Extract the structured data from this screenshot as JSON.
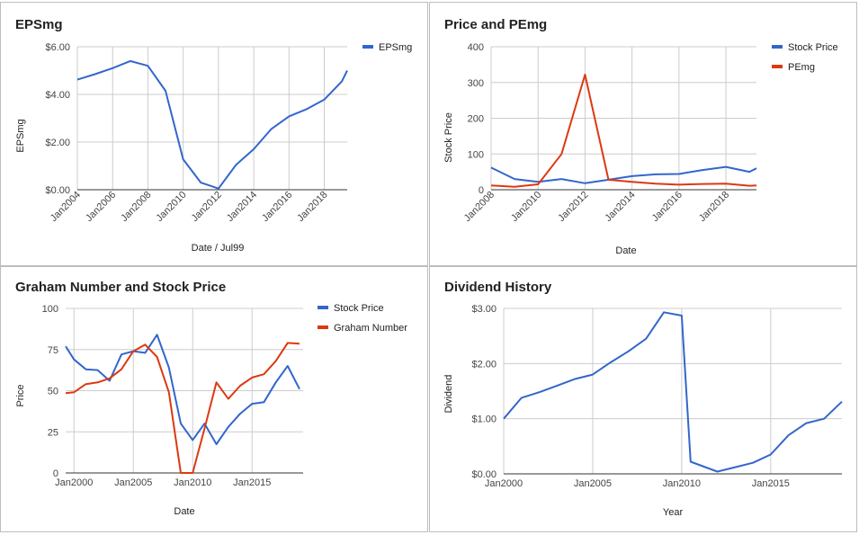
{
  "colors": {
    "blue": "#3366cc",
    "red": "#dc3912",
    "grid": "#cccccc",
    "baseline": "#333333"
  },
  "chart_data": [
    {
      "type": "line",
      "title": "EPSmg",
      "xlabel": "Date / Jul99",
      "ylabel": "EPSmg",
      "x_ticks": [
        "Jan2004",
        "Jan2006",
        "Jan2008",
        "Jan2010",
        "Jan2012",
        "Jan2014",
        "Jan2016",
        "Jan2018"
      ],
      "x_range": [
        2004,
        2019.3
      ],
      "y_ticks": [
        "$0.00",
        "$2.00",
        "$4.00",
        "$6.00"
      ],
      "y_tick_values": [
        0,
        2,
        4,
        6
      ],
      "ylim": [
        0,
        6
      ],
      "legend_position": "right",
      "series": [
        {
          "name": "EPSmg",
          "color": "#3366cc",
          "points": [
            [
              2004.0,
              4.62
            ],
            [
              2005.0,
              4.85
            ],
            [
              2006.0,
              5.1
            ],
            [
              2007.0,
              5.4
            ],
            [
              2008.0,
              5.2
            ],
            [
              2009.0,
              4.15
            ],
            [
              2010.0,
              1.28
            ],
            [
              2011.0,
              0.3
            ],
            [
              2012.0,
              0.05
            ],
            [
              2013.0,
              1.05
            ],
            [
              2014.0,
              1.7
            ],
            [
              2015.0,
              2.55
            ],
            [
              2016.0,
              3.08
            ],
            [
              2017.0,
              3.38
            ],
            [
              2018.0,
              3.78
            ],
            [
              2019.0,
              4.55
            ],
            [
              2019.3,
              5.0
            ]
          ]
        }
      ]
    },
    {
      "type": "line",
      "title": "Price and PEmg",
      "xlabel": "Date",
      "ylabel": "Stock Price",
      "x_ticks": [
        "Jan2008",
        "Jan2010",
        "Jan2012",
        "Jan2014",
        "Jan2016",
        "Jan2018"
      ],
      "x_range": [
        2008,
        2019.3
      ],
      "y_ticks": [
        "0",
        "100",
        "200",
        "300",
        "400"
      ],
      "y_tick_values": [
        0,
        100,
        200,
        300,
        400
      ],
      "ylim": [
        0,
        400
      ],
      "legend_position": "right",
      "series": [
        {
          "name": "Stock Price",
          "color": "#3366cc",
          "points": [
            [
              2008.0,
              62
            ],
            [
              2009.0,
              30
            ],
            [
              2010.0,
              22
            ],
            [
              2011.0,
              30
            ],
            [
              2012.0,
              18
            ],
            [
              2013.0,
              28
            ],
            [
              2014.0,
              38
            ],
            [
              2015.0,
              43
            ],
            [
              2016.0,
              44
            ],
            [
              2017.0,
              55
            ],
            [
              2018.0,
              64
            ],
            [
              2019.0,
              50
            ],
            [
              2019.3,
              60
            ]
          ]
        },
        {
          "name": "PEmg",
          "color": "#dc3912",
          "points": [
            [
              2008.0,
              12
            ],
            [
              2009.0,
              8
            ],
            [
              2010.0,
              15
            ],
            [
              2011.0,
              100
            ],
            [
              2012.0,
              322
            ],
            [
              2013.0,
              28
            ],
            [
              2014.0,
              22
            ],
            [
              2015.0,
              17
            ],
            [
              2016.0,
              14
            ],
            [
              2017.0,
              16
            ],
            [
              2018.0,
              17
            ],
            [
              2019.0,
              11
            ],
            [
              2019.3,
              12
            ]
          ]
        }
      ]
    },
    {
      "type": "line",
      "title": "Graham Number and Stock Price",
      "xlabel": "Date",
      "ylabel": "Price",
      "x_ticks": [
        "Jan2000",
        "Jan2005",
        "Jan2010",
        "Jan2015"
      ],
      "x_tick_values": [
        2000,
        2005,
        2010,
        2015
      ],
      "x_range": [
        1999.3,
        2019.3
      ],
      "y_ticks": [
        "0",
        "25",
        "50",
        "75",
        "100"
      ],
      "y_tick_values": [
        0,
        25,
        50,
        75,
        100
      ],
      "ylim": [
        0,
        100
      ],
      "legend_position": "right",
      "series": [
        {
          "name": "Stock Price",
          "color": "#3366cc",
          "points": [
            [
              1999.3,
              77
            ],
            [
              2000.0,
              69
            ],
            [
              2001.0,
              63
            ],
            [
              2002.0,
              62.5
            ],
            [
              2003.0,
              56
            ],
            [
              2004.0,
              72
            ],
            [
              2005.0,
              74
            ],
            [
              2006.0,
              73
            ],
            [
              2007.0,
              84
            ],
            [
              2008.0,
              64
            ],
            [
              2009.0,
              30
            ],
            [
              2010.0,
              20
            ],
            [
              2011.0,
              30
            ],
            [
              2012.0,
              17.5
            ],
            [
              2013.0,
              28
            ],
            [
              2014.0,
              36
            ],
            [
              2015.0,
              42
            ],
            [
              2016.0,
              43
            ],
            [
              2017.0,
              55
            ],
            [
              2018.0,
              65
            ],
            [
              2019.0,
              51
            ]
          ]
        },
        {
          "name": "Graham Number",
          "color": "#dc3912",
          "points": [
            [
              1999.3,
              48.5
            ],
            [
              2000.0,
              49
            ],
            [
              2001.0,
              54
            ],
            [
              2002.0,
              55
            ],
            [
              2003.0,
              57.5
            ],
            [
              2004.0,
              63
            ],
            [
              2005.0,
              74
            ],
            [
              2006.0,
              78
            ],
            [
              2007.0,
              70.5
            ],
            [
              2008.0,
              49
            ],
            [
              2009.0,
              0
            ],
            [
              2010.0,
              0
            ],
            [
              2011.0,
              27
            ],
            [
              2012.0,
              55
            ],
            [
              2013.0,
              45
            ],
            [
              2014.0,
              53
            ],
            [
              2015.0,
              58
            ],
            [
              2016.0,
              60
            ],
            [
              2017.0,
              68
            ],
            [
              2018.0,
              79
            ],
            [
              2019.0,
              78.5
            ]
          ]
        }
      ]
    },
    {
      "type": "line",
      "title": "Dividend History",
      "xlabel": "Year",
      "ylabel": "Dividend",
      "x_ticks": [
        "Jan2000",
        "Jan2005",
        "Jan2010",
        "Jan2015"
      ],
      "x_tick_values": [
        2000,
        2005,
        2010,
        2015
      ],
      "x_range": [
        2000,
        2019
      ],
      "y_ticks": [
        "$0.00",
        "$1.00",
        "$2.00",
        "$3.00"
      ],
      "y_tick_values": [
        0,
        1,
        2,
        3
      ],
      "ylim": [
        0,
        3
      ],
      "legend_position": "none",
      "series": [
        {
          "name": "",
          "color": "#3366cc",
          "points": [
            [
              2000.0,
              1.0
            ],
            [
              2001.0,
              1.38
            ],
            [
              2002.0,
              1.48
            ],
            [
              2003.0,
              1.6
            ],
            [
              2004.0,
              1.72
            ],
            [
              2005.0,
              1.8
            ],
            [
              2006.0,
              2.02
            ],
            [
              2007.0,
              2.22
            ],
            [
              2008.0,
              2.45
            ],
            [
              2009.0,
              2.93
            ],
            [
              2010.0,
              2.87
            ],
            [
              2010.5,
              0.22
            ],
            [
              2012.0,
              0.04
            ],
            [
              2013.0,
              0.12
            ],
            [
              2014.0,
              0.2
            ],
            [
              2015.0,
              0.35
            ],
            [
              2016.0,
              0.7
            ],
            [
              2017.0,
              0.92
            ],
            [
              2018.0,
              1.0
            ],
            [
              2019.0,
              1.31
            ]
          ]
        }
      ]
    }
  ]
}
